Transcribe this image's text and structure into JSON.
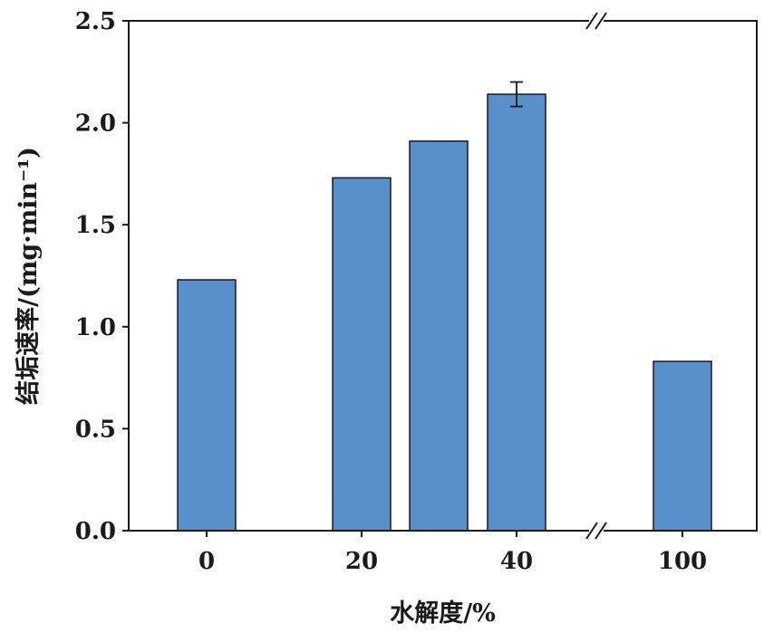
{
  "chart_data": {
    "type": "bar",
    "categories": [
      "0",
      "20",
      "30",
      "40",
      "100"
    ],
    "x_tick_labels": [
      "0",
      "20",
      "40",
      "100"
    ],
    "values": [
      1.23,
      1.73,
      1.91,
      2.14,
      0.83
    ],
    "error_bars": [
      null,
      null,
      null,
      0.06,
      null
    ],
    "xlabel": "水解度/%",
    "ylabel": "结垢速率/(mg·min⁻¹)",
    "ylim": [
      0,
      2.5
    ],
    "y_ticks": [
      "0.0",
      "0.5",
      "1.0",
      "1.5",
      "2.0",
      "2.5"
    ],
    "y_tick_values": [
      0,
      0.5,
      1.0,
      1.5,
      2.0,
      2.5
    ],
    "axis_break": "between 40 and 100",
    "grid": false,
    "legend": "none",
    "bar_color": "#5b8fc9",
    "bar_edge_color": "#1a1a1a"
  }
}
